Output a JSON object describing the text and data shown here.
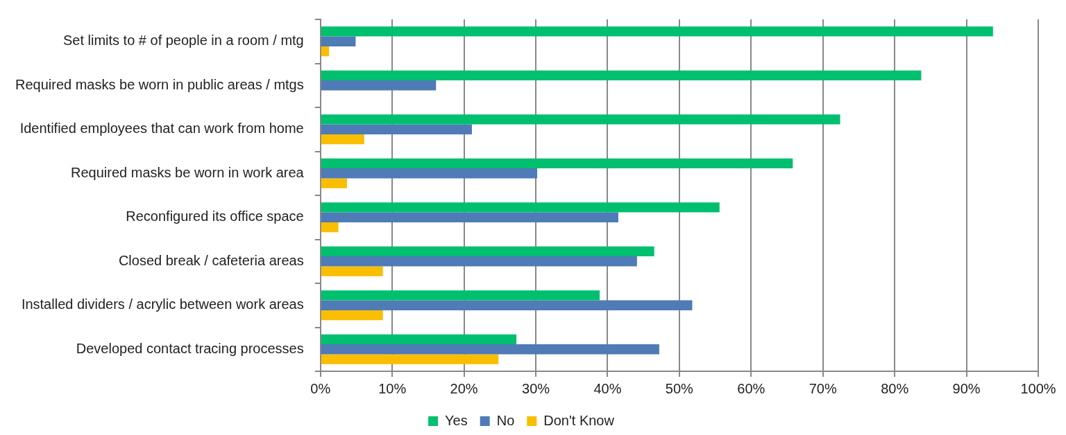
{
  "chart_data": {
    "type": "bar",
    "orientation": "horizontal",
    "categories": [
      "Set limits to # of people in a room / mtg",
      "Required masks be worn in public areas / mtgs",
      "Identified employees that can work from home",
      "Required masks be worn in work area",
      "Reconfigured its office space",
      "Closed break / cafeteria areas",
      "Installed dividers / acrylic between work areas",
      "Developed contact tracing processes"
    ],
    "series": [
      {
        "name": "Yes",
        "color": "#00bf6f",
        "values": [
          93.7,
          83.7,
          72.4,
          65.8,
          55.6,
          46.5,
          38.9,
          27.3
        ]
      },
      {
        "name": "No",
        "color": "#4f7bb6",
        "values": [
          4.9,
          16.1,
          21.1,
          30.2,
          41.5,
          44.1,
          51.8,
          47.2
        ]
      },
      {
        "name": "Don't Know",
        "color": "#f9be00",
        "values": [
          1.2,
          null,
          6.1,
          3.7,
          2.5,
          8.7,
          8.7,
          24.8
        ]
      }
    ],
    "xlim": [
      0,
      100
    ],
    "xticks": [
      {
        "value": 0,
        "label": "0%"
      },
      {
        "value": 10,
        "label": "10%"
      },
      {
        "value": 20,
        "label": "20%"
      },
      {
        "value": 30,
        "label": "30%"
      },
      {
        "value": 40,
        "label": "40%"
      },
      {
        "value": 50,
        "label": "50%"
      },
      {
        "value": 60,
        "label": "60%"
      },
      {
        "value": 70,
        "label": "70%"
      },
      {
        "value": 80,
        "label": "80%"
      },
      {
        "value": 90,
        "label": "90%"
      },
      {
        "value": 100,
        "label": "100%"
      }
    ],
    "grid": "x",
    "legend": "bottom"
  }
}
